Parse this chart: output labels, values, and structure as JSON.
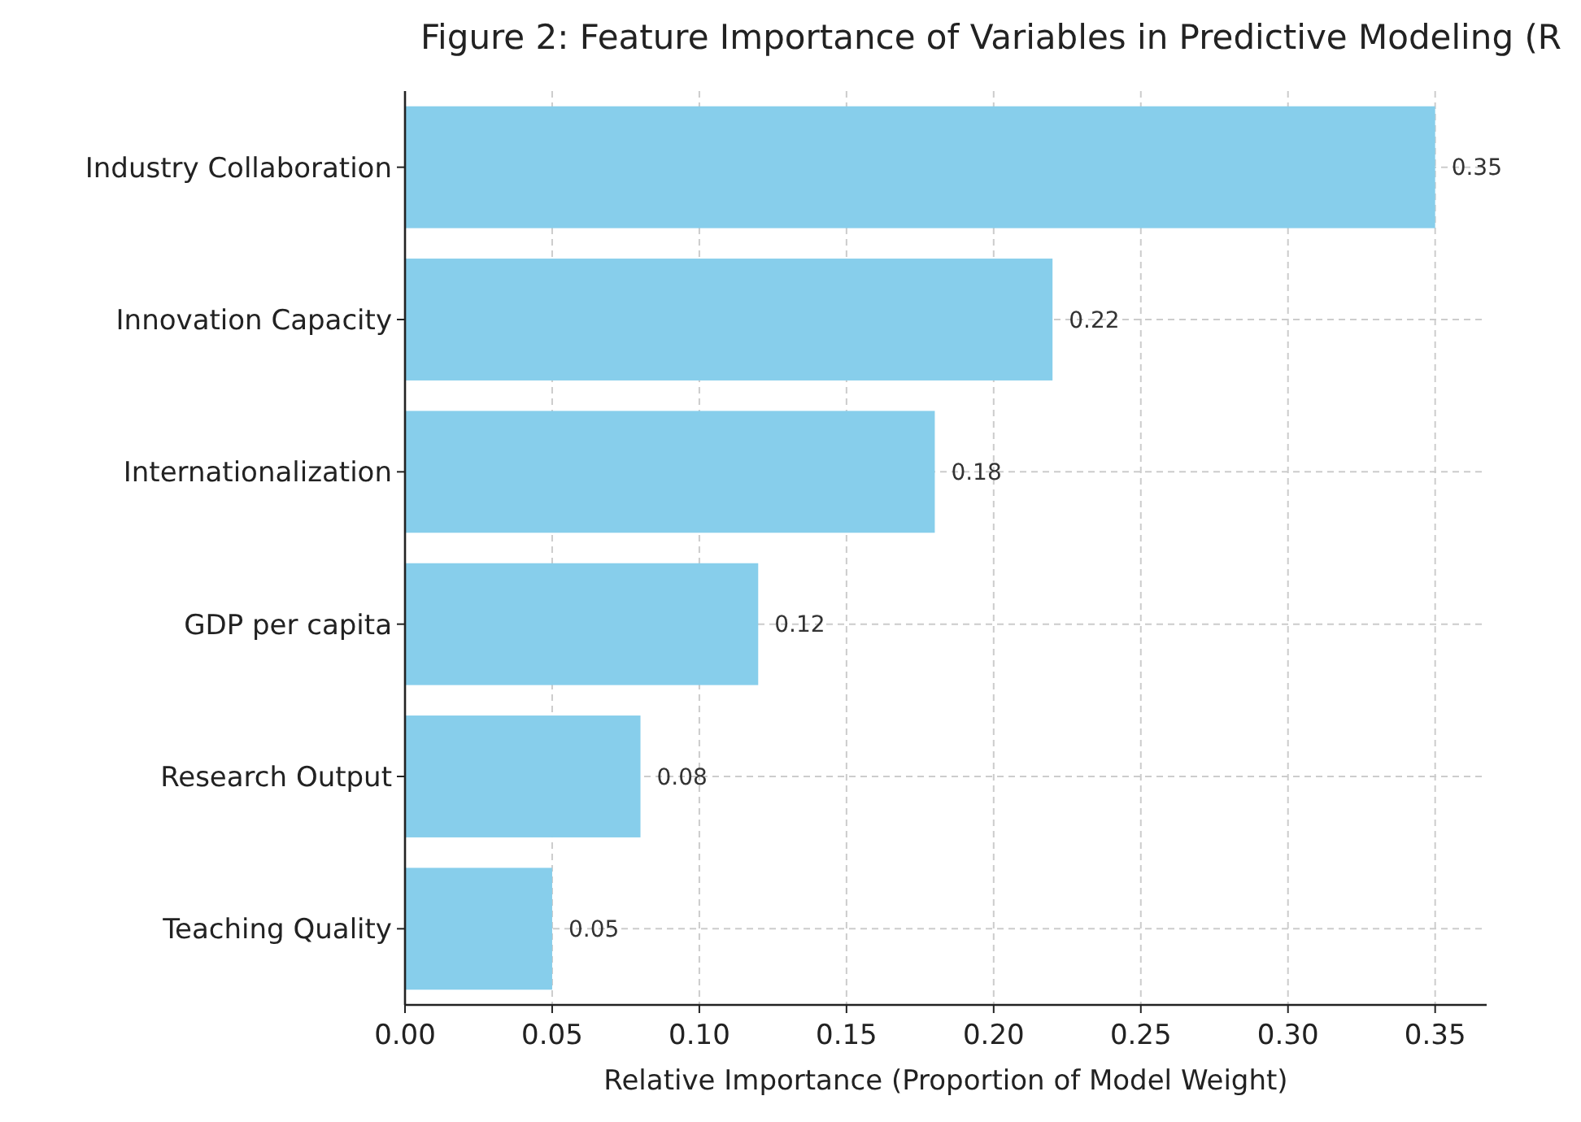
{
  "chart_data": {
    "type": "bar",
    "orientation": "horizontal",
    "title": "Figure 2: Feature Importance of Variables in Predictive Modeling (R",
    "xlabel": "Relative Importance (Proportion of Model Weight)",
    "categories": [
      "Industry Collaboration",
      "Innovation Capacity",
      "Internationalization",
      "GDP per capita",
      "Research Output",
      "Teaching Quality"
    ],
    "values": [
      0.35,
      0.22,
      0.18,
      0.12,
      0.08,
      0.05
    ],
    "color": "#87ceeb",
    "data_labels": true,
    "grid": true,
    "xlim": [
      0,
      0.3675
    ],
    "xticks": [
      {
        "value": 0,
        "label": "0.00"
      },
      {
        "value": 0.05,
        "label": "0.05"
      },
      {
        "value": 0.1,
        "label": "0.10"
      },
      {
        "value": 0.15,
        "label": "0.15"
      },
      {
        "value": 0.2,
        "label": "0.20"
      },
      {
        "value": 0.25,
        "label": "0.25"
      },
      {
        "value": 0.3,
        "label": "0.30"
      },
      {
        "value": 0.35,
        "label": "0.35"
      }
    ]
  }
}
